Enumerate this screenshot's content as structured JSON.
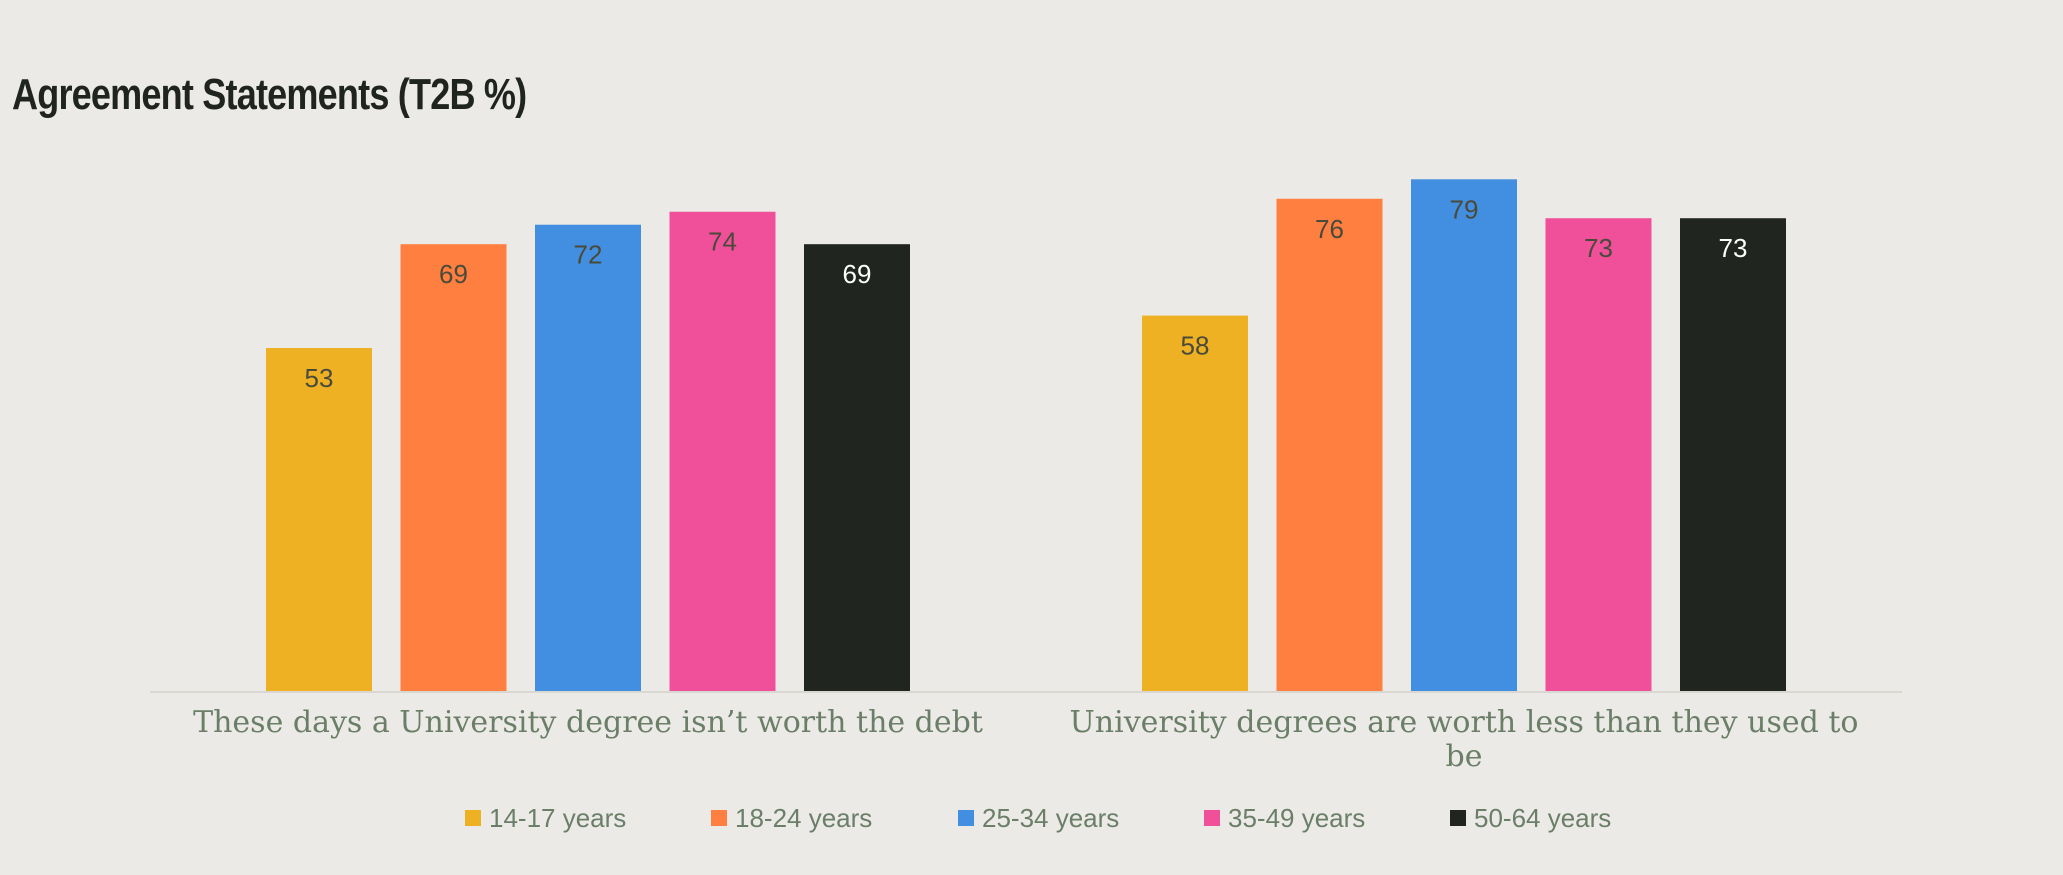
{
  "chart_data": {
    "type": "bar",
    "title": "Agreement Statements (T2B %)",
    "categories": [
      [
        "These days a University degree isn’t worth the debt"
      ],
      [
        "University degrees are worth less than they used to",
        "be"
      ]
    ],
    "series": [
      {
        "name": "14-17 years",
        "color": "#EFB124",
        "label_color": "#4A4A3A",
        "values": [
          53,
          58
        ]
      },
      {
        "name": "18-24 years",
        "color": "#FF7F41",
        "label_color": "#4A4A3A",
        "values": [
          69,
          76
        ]
      },
      {
        "name": "25-34 years",
        "color": "#428EE0",
        "label_color": "#4A4A3A",
        "values": [
          72,
          79
        ]
      },
      {
        "name": "35-49 years",
        "color": "#F04F9A",
        "label_color": "#4A4A3A",
        "values": [
          74,
          73
        ]
      },
      {
        "name": "50-64 years",
        "color": "#20261F",
        "label_color": "#FFFFFF",
        "values": [
          69,
          73
        ]
      }
    ],
    "ylim": [
      0,
      80
    ],
    "data_labels": true,
    "grid": false,
    "legend_position": "bottom"
  }
}
